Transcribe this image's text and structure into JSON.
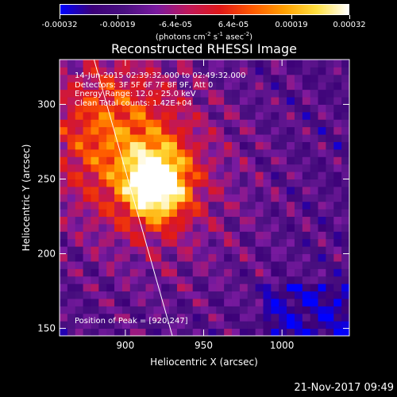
{
  "colorbar": {
    "ticks": [
      "-0.00032",
      "-0.00019",
      "-6.4e-05",
      "6.4e-05",
      "0.00019",
      "0.00032"
    ],
    "unit_prefix": "(photons cm",
    "unit_exp1": "-2",
    "unit_mid1": " s",
    "unit_exp2": "-1",
    "unit_mid2": " asec",
    "unit_exp3": "-2",
    "unit_suffix": ")",
    "range": [
      -0.00032,
      0.00032
    ]
  },
  "title": "Reconstructed RHESSI Image",
  "annotations": {
    "time_range": "14-Jun-2015 02:39:32.000 to 02:49:32.000",
    "detectors": "Detectors: 3F 5F 6F 7F 8F 9F, Att 0",
    "energy": "Energy Range: 12.0 - 25.0 keV",
    "clean": "Clean     Total counts: 1.42E+04",
    "peak": "Position of Peak = [920,247]"
  },
  "timestamp": "21-Nov-2017 09:49",
  "colors": {
    "background": "#000000",
    "colormap": [
      "#0000ff",
      "#3c0078",
      "#4a1080",
      "#7a1aa0",
      "#c0185a",
      "#e01818",
      "#ff5a00",
      "#ffa000",
      "#ffe040",
      "#ffffff"
    ]
  },
  "chart_data": {
    "type": "heatmap",
    "title": "Reconstructed RHESSI Image",
    "xlabel": "Heliocentric X (arcsec)",
    "ylabel": "Heliocentric Y (arcsec)",
    "xlim": [
      858,
      1043
    ],
    "ylim": [
      145,
      330
    ],
    "xticks": [
      900,
      950,
      1000
    ],
    "yticks": [
      150,
      200,
      250,
      300
    ],
    "peak": [
      920,
      247
    ],
    "grid": false,
    "limb_line": [
      [
        880,
        330
      ],
      [
        930,
        145
      ]
    ]
  }
}
